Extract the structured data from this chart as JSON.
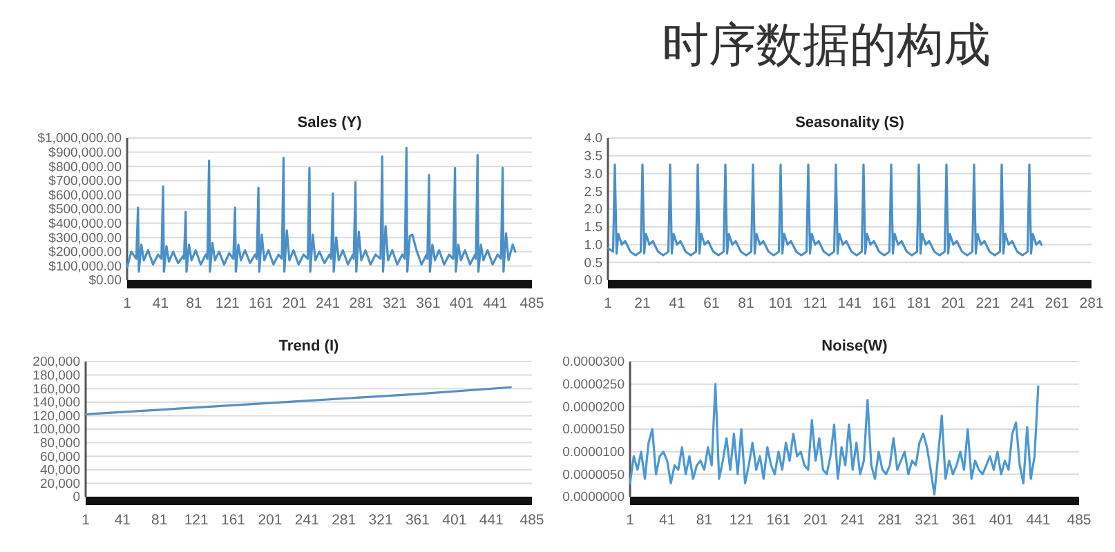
{
  "chart_data": [
    {
      "type": "other",
      "title": "时序数据的构成"
    },
    {
      "type": "line",
      "title": "Sales (Y)",
      "xlim": [
        1,
        485
      ],
      "xticks": [
        1,
        41,
        81,
        121,
        161,
        201,
        241,
        281,
        321,
        361,
        401,
        441,
        485
      ],
      "ylim": [
        0,
        1000000
      ],
      "yticks": [
        {
          "value": 0,
          "label": "$0.00"
        },
        {
          "value": 100000,
          "label": "$100,000.00"
        },
        {
          "value": 200000,
          "label": "$200,000.00"
        },
        {
          "value": 300000,
          "label": "$300,000.00"
        },
        {
          "value": 400000,
          "label": "$400,000.00"
        },
        {
          "value": 500000,
          "label": "$500,000.00"
        },
        {
          "value": 600000,
          "label": "$600,000.00"
        },
        {
          "value": 700000,
          "label": "$700,000.00"
        },
        {
          "value": 800000,
          "label": "$800,000.00"
        },
        {
          "value": 900000,
          "label": "$900,000.00"
        },
        {
          "value": 1000000,
          "label": "$1,000,000.00"
        }
      ],
      "grid": "y",
      "line_style": "solid",
      "series": [
        {
          "color": "#4a90c8",
          "x": [
            1,
            6,
            12,
            14,
            15,
            18,
            21,
            26,
            32,
            38,
            42,
            44,
            45,
            48,
            51,
            56,
            62,
            68,
            69,
            71,
            72,
            75,
            78,
            83,
            89,
            95,
            97,
            99,
            100,
            103,
            106,
            111,
            117,
            123,
            128,
            130,
            131,
            134,
            137,
            142,
            148,
            154,
            156,
            158,
            159,
            162,
            165,
            170,
            176,
            182,
            186,
            188,
            189,
            192,
            195,
            200,
            206,
            212,
            217,
            219,
            220,
            223,
            226,
            231,
            237,
            243,
            245,
            247,
            248,
            251,
            254,
            259,
            265,
            271,
            272,
            274,
            275,
            278,
            281,
            286,
            292,
            298,
            304,
            306,
            307,
            310,
            313,
            318,
            324,
            330,
            333,
            335,
            336,
            339,
            342,
            347,
            353,
            359,
            360,
            362,
            363,
            366,
            369,
            374,
            380,
            386,
            391,
            393,
            394,
            397,
            400,
            405,
            411,
            417,
            418,
            420,
            421,
            424,
            427,
            432,
            438,
            444,
            448,
            450,
            451,
            454,
            457,
            462,
            465
          ],
          "values": [
            90000,
            200000,
            150000,
            510000,
            60000,
            250000,
            140000,
            210000,
            110000,
            180000,
            150000,
            660000,
            60000,
            240000,
            130000,
            200000,
            120000,
            170000,
            150000,
            480000,
            60000,
            250000,
            140000,
            210000,
            110000,
            180000,
            150000,
            840000,
            60000,
            260000,
            140000,
            200000,
            110000,
            190000,
            150000,
            510000,
            60000,
            250000,
            140000,
            210000,
            120000,
            180000,
            150000,
            650000,
            60000,
            320000,
            140000,
            210000,
            110000,
            180000,
            150000,
            860000,
            60000,
            350000,
            140000,
            210000,
            110000,
            180000,
            150000,
            790000,
            60000,
            320000,
            140000,
            200000,
            120000,
            180000,
            150000,
            610000,
            60000,
            300000,
            140000,
            210000,
            110000,
            180000,
            150000,
            690000,
            60000,
            340000,
            140000,
            210000,
            110000,
            180000,
            150000,
            870000,
            60000,
            380000,
            140000,
            210000,
            110000,
            180000,
            150000,
            930000,
            60000,
            310000,
            320000,
            210000,
            110000,
            180000,
            150000,
            740000,
            60000,
            250000,
            140000,
            210000,
            110000,
            180000,
            150000,
            790000,
            60000,
            250000,
            140000,
            210000,
            110000,
            180000,
            150000,
            880000,
            60000,
            250000,
            140000,
            210000,
            110000,
            180000,
            150000,
            790000,
            60000,
            330000,
            140000,
            250000,
            200000
          ]
        }
      ]
    },
    {
      "type": "line",
      "title": "Seasonality (S)",
      "xlim": [
        1,
        281
      ],
      "xticks": [
        1,
        21,
        41,
        61,
        81,
        101,
        121,
        141,
        161,
        181,
        201,
        221,
        241,
        261,
        281
      ],
      "ylim": [
        0,
        4
      ],
      "yticks": [
        {
          "value": 0,
          "label": "0.0"
        },
        {
          "value": 0.5,
          "label": "0.5"
        },
        {
          "value": 1,
          "label": "1.0"
        },
        {
          "value": 1.5,
          "label": "1.5"
        },
        {
          "value": 2,
          "label": "2.0"
        },
        {
          "value": 2.5,
          "label": "2.5"
        },
        {
          "value": 3,
          "label": "3.0"
        },
        {
          "value": 3.5,
          "label": "3.5"
        },
        {
          "value": 4,
          "label": "4.0"
        }
      ],
      "grid": "y",
      "line_style": "solid",
      "series": [
        {
          "color": "#4a90c8",
          "x": [
            1,
            4,
            5,
            6,
            7,
            9,
            11,
            14,
            17,
            20,
            21,
            22,
            23,
            25,
            27,
            30,
            33,
            36,
            37,
            38,
            39,
            41,
            43,
            46,
            49,
            52,
            53,
            54,
            55,
            57,
            59,
            62,
            65,
            68,
            69,
            70,
            71,
            73,
            75,
            78,
            81,
            84,
            85,
            86,
            87,
            89,
            91,
            94,
            97,
            100,
            101,
            102,
            103,
            105,
            107,
            110,
            113,
            116,
            117,
            118,
            119,
            121,
            123,
            126,
            129,
            132,
            133,
            134,
            135,
            137,
            139,
            142,
            145,
            148,
            149,
            150,
            151,
            153,
            155,
            158,
            161,
            164,
            165,
            166,
            167,
            169,
            171,
            174,
            177,
            180,
            181,
            182,
            183,
            185,
            187,
            190,
            193,
            196,
            197,
            198,
            199,
            201,
            203,
            206,
            209,
            212,
            213,
            214,
            215,
            217,
            219,
            222,
            225,
            228,
            229,
            230,
            231,
            233,
            235,
            238,
            241,
            244,
            245,
            246,
            247,
            249,
            251,
            252
          ],
          "values": [
            0.9,
            0.8,
            3.25,
            0.75,
            1.3,
            1.0,
            1.1,
            0.8,
            0.7,
            0.8,
            3.25,
            0.75,
            1.3,
            1.0,
            1.1,
            0.8,
            0.7,
            0.8,
            3.25,
            0.75,
            1.3,
            1.0,
            1.1,
            0.8,
            0.7,
            0.8,
            3.25,
            0.75,
            1.3,
            1.0,
            1.1,
            0.8,
            0.7,
            0.8,
            3.25,
            0.75,
            1.3,
            1.0,
            1.1,
            0.8,
            0.7,
            0.8,
            3.25,
            0.75,
            1.3,
            1.0,
            1.1,
            0.8,
            0.7,
            0.8,
            3.25,
            0.75,
            1.3,
            1.0,
            1.1,
            0.8,
            0.7,
            0.8,
            3.25,
            0.75,
            1.3,
            1.0,
            1.1,
            0.8,
            0.7,
            0.8,
            3.25,
            0.75,
            1.3,
            1.0,
            1.1,
            0.8,
            0.7,
            0.8,
            3.25,
            0.75,
            1.3,
            1.0,
            1.1,
            0.8,
            0.7,
            0.8,
            3.25,
            0.75,
            1.3,
            1.0,
            1.1,
            0.8,
            0.7,
            0.8,
            3.25,
            0.75,
            1.3,
            1.0,
            1.1,
            0.8,
            0.7,
            0.8,
            3.25,
            0.75,
            1.3,
            1.0,
            1.1,
            0.8,
            0.7,
            0.8,
            3.25,
            0.75,
            1.3,
            1.0,
            1.1,
            0.8,
            0.7,
            0.8,
            3.25,
            0.75,
            1.3,
            1.0,
            1.1,
            0.8,
            0.7,
            0.8,
            3.25,
            0.75,
            1.3,
            1.0,
            1.1,
            1.0
          ]
        }
      ]
    },
    {
      "type": "line",
      "title": "Trend (I)",
      "xlim": [
        1,
        485
      ],
      "xticks": [
        1,
        41,
        81,
        121,
        161,
        201,
        241,
        281,
        321,
        361,
        401,
        441,
        485
      ],
      "ylim": [
        0,
        200000
      ],
      "yticks": [
        0,
        {
          "value": 20000,
          "label": "20,000"
        },
        {
          "value": 40000,
          "label": "40,000"
        },
        {
          "value": 60000,
          "label": "60,000"
        },
        {
          "value": 80000,
          "label": "80,000"
        },
        {
          "value": 100000,
          "label": "100,000"
        },
        {
          "value": 120000,
          "label": "120,000"
        },
        {
          "value": 140000,
          "label": "140,000"
        },
        {
          "value": 160000,
          "label": "160,000"
        },
        {
          "value": 180000,
          "label": "180,000"
        },
        {
          "value": 200000,
          "label": "200,000"
        }
      ],
      "grid": "y",
      "line_style": "solid",
      "series": [
        {
          "color": "#5a8fbf",
          "x": [
            1,
            120,
            240,
            360,
            462
          ],
          "values": [
            122000,
            132000,
            142000,
            152000,
            162000
          ]
        }
      ]
    },
    {
      "type": "line",
      "title": "Noise(W)",
      "xlim": [
        1,
        485
      ],
      "xticks": [
        1,
        41,
        81,
        121,
        161,
        201,
        241,
        281,
        321,
        361,
        401,
        441,
        485
      ],
      "ylim": [
        0,
        3e-05
      ],
      "yticks": [
        {
          "value": 0,
          "label": "0.0000000"
        },
        {
          "value": 5e-06,
          "label": "0.0000050"
        },
        {
          "value": 1e-05,
          "label": "0.0000100"
        },
        {
          "value": 1.5e-05,
          "label": "0.0000150"
        },
        {
          "value": 2e-05,
          "label": "0.0000200"
        },
        {
          "value": 2.5e-05,
          "label": "0.0000250"
        },
        {
          "value": 3e-05,
          "label": "0.0000300"
        }
      ],
      "grid": "y",
      "line_style": "solid",
      "series": [
        {
          "color": "#4a98d6",
          "x": [
            1,
            5,
            9,
            13,
            17,
            21,
            25,
            29,
            33,
            37,
            41,
            45,
            49,
            53,
            57,
            61,
            65,
            69,
            73,
            77,
            81,
            85,
            89,
            93,
            97,
            101,
            105,
            109,
            113,
            117,
            121,
            125,
            129,
            133,
            137,
            141,
            145,
            149,
            153,
            157,
            161,
            165,
            169,
            173,
            177,
            181,
            185,
            189,
            193,
            197,
            201,
            205,
            209,
            213,
            217,
            221,
            225,
            229,
            233,
            237,
            241,
            245,
            249,
            253,
            257,
            261,
            265,
            269,
            273,
            277,
            281,
            285,
            289,
            293,
            297,
            301,
            305,
            309,
            313,
            317,
            321,
            325,
            329,
            333,
            337,
            341,
            345,
            349,
            353,
            357,
            361,
            365,
            369,
            373,
            377,
            381,
            385,
            389,
            393,
            397,
            401,
            405,
            409,
            413,
            417,
            421,
            425,
            429,
            433,
            437,
            441
          ],
          "values": [
            3e-06,
            9e-06,
            6e-06,
            1e-05,
            4e-06,
            1.2e-05,
            1.5e-05,
            5e-06,
            9e-06,
            1e-05,
            8e-06,
            3e-06,
            7e-06,
            6e-06,
            1.1e-05,
            5e-06,
            9e-06,
            4e-06,
            7e-06,
            8e-06,
            6e-06,
            1.1e-05,
            7e-06,
            2.5e-05,
            4e-06,
            8e-06,
            1.3e-05,
            6e-06,
            1.4e-05,
            5e-06,
            1.5e-05,
            3e-06,
            7e-06,
            1.2e-05,
            6e-06,
            9e-06,
            4e-06,
            1.1e-05,
            7e-06,
            5e-06,
            1e-05,
            6e-06,
            1.2e-05,
            8e-06,
            1.4e-05,
            9e-06,
            1e-05,
            7e-06,
            6e-06,
            1.7e-05,
            8e-06,
            1.3e-05,
            6e-06,
            5e-06,
            9e-06,
            1.6e-05,
            4e-06,
            1.1e-05,
            7e-06,
            1.6e-05,
            6e-06,
            1.2e-05,
            5e-06,
            8e-06,
            2.15e-05,
            7e-06,
            4e-06,
            1e-05,
            6e-06,
            5e-06,
            7e-06,
            1.3e-05,
            6e-06,
            8e-06,
            1e-05,
            5e-06,
            8e-06,
            7e-06,
            1.2e-05,
            1.4e-05,
            1.1e-05,
            6e-06,
            5e-07,
            9e-06,
            1.8e-05,
            4e-06,
            8e-06,
            5e-06,
            7e-06,
            1e-05,
            6e-06,
            1.5e-05,
            4e-06,
            8e-06,
            6e-06,
            5e-06,
            7e-06,
            9e-06,
            6e-06,
            1e-05,
            5e-06,
            8e-06,
            6e-06,
            1.4e-05,
            1.65e-05,
            7e-06,
            3e-06,
            1.55e-05,
            4e-06,
            9e-06,
            2.45e-05
          ]
        }
      ]
    }
  ]
}
